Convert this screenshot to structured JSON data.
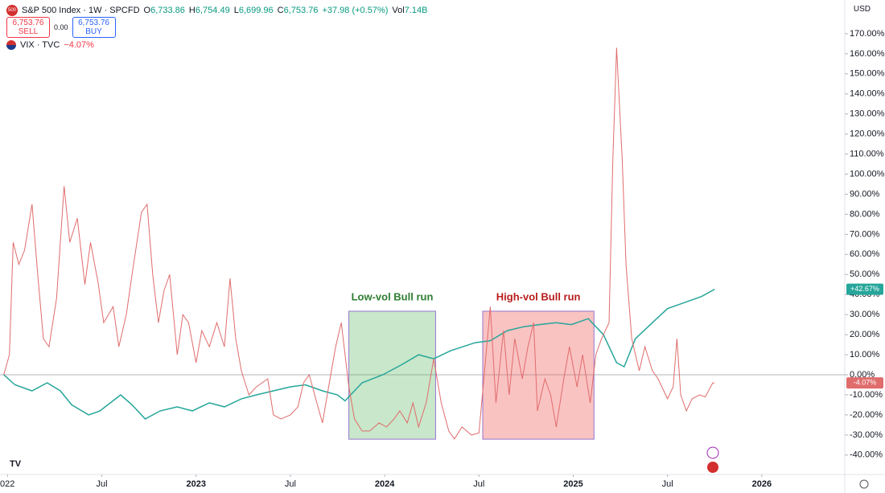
{
  "header": {
    "logo": "500",
    "title": "S&P 500 Index · 1W · SPCFD",
    "ohlc": [
      {
        "label": "O",
        "value": "6,733.86"
      },
      {
        "label": "H",
        "value": "6,754.49"
      },
      {
        "label": "L",
        "value": "6,699.96"
      },
      {
        "label": "C",
        "value": "6,753.76"
      }
    ],
    "change": "+37.98 (+0.57%)",
    "volume_label": "Vol",
    "volume": "7.14B",
    "sell_price": "6,753.76",
    "sell": "SELL",
    "spread": "0.00",
    "buy_price": "6,753.76",
    "buy": "BUY",
    "compare_symbol": "VIX · TVC",
    "compare_change": "−4.07%",
    "currency": "USD"
  },
  "chart_data": {
    "type": "line",
    "xlim": [
      2021.96,
      2026.44
    ],
    "ylim": [
      -49.7,
      186.8
    ],
    "xticks": [
      {
        "value": 2022,
        "label": "022"
      },
      {
        "value": 2022.5,
        "label": "Jul"
      },
      2023,
      {
        "value": 2023.5,
        "label": "Jul"
      },
      2024,
      {
        "value": 2024.5,
        "label": "Jul"
      },
      2025,
      {
        "value": 2025.5,
        "label": "Jul"
      },
      2026
    ],
    "yticks": [
      {
        "value": -40,
        "label": "-40.00%"
      },
      {
        "value": -30,
        "label": "-30.00%"
      },
      {
        "value": -20,
        "label": "-20.00%"
      },
      {
        "value": -10,
        "label": "-10.00%"
      },
      {
        "value": 0,
        "label": "0.00%"
      },
      {
        "value": 10,
        "label": "10.00%"
      },
      {
        "value": 20,
        "label": "20.00%"
      },
      {
        "value": 30,
        "label": "30.00%"
      },
      {
        "value": 40,
        "label": "40.00%"
      },
      {
        "value": 50,
        "label": "50.00%"
      },
      {
        "value": 60,
        "label": "60.00%"
      },
      {
        "value": 70,
        "label": "70.00%"
      },
      {
        "value": 80,
        "label": "80.00%"
      },
      {
        "value": 90,
        "label": "90.00%"
      },
      {
        "value": 100,
        "label": "100.00%"
      },
      {
        "value": 110,
        "label": "110.00%"
      },
      {
        "value": 120,
        "label": "120.00%"
      },
      {
        "value": 130,
        "label": "130.00%"
      },
      {
        "value": 140,
        "label": "140.00%"
      },
      {
        "value": 150,
        "label": "150.00%"
      },
      {
        "value": 160,
        "label": "160.00%"
      },
      {
        "value": 170,
        "label": "170.00%"
      }
    ],
    "grid": false,
    "series": [
      {
        "name": "S&P 500 Index",
        "color": "#26a69a",
        "last_label": "+42.67%",
        "x": [
          2021.98,
          2022.04,
          2022.13,
          2022.21,
          2022.28,
          2022.34,
          2022.43,
          2022.49,
          2022.6,
          2022.66,
          2022.73,
          2022.81,
          2022.9,
          2022.98,
          2023.07,
          2023.15,
          2023.24,
          2023.32,
          2023.41,
          2023.5,
          2023.58,
          2023.67,
          2023.75,
          2023.79,
          2023.88,
          2023.99,
          2024.09,
          2024.18,
          2024.26,
          2024.35,
          2024.48,
          2024.56,
          2024.65,
          2024.74,
          2024.82,
          2024.91,
          2024.99,
          2025.08,
          2025.16,
          2025.23,
          2025.27,
          2025.33,
          2025.42,
          2025.5,
          2025.59,
          2025.68,
          2025.75
        ],
        "values": [
          0,
          -5,
          -8,
          -4,
          -8,
          -15,
          -20,
          -18,
          -10,
          -15,
          -22,
          -18,
          -16,
          -18,
          -14,
          -16,
          -12,
          -10,
          -8,
          -6,
          -5,
          -8,
          -10,
          -13,
          -4,
          0,
          5,
          10,
          8,
          12,
          16,
          17,
          22,
          24,
          25,
          26,
          25,
          28,
          20,
          6,
          4,
          18,
          26,
          33,
          36,
          39,
          42.67
        ]
      },
      {
        "name": "VIX",
        "color": "#e06c6c",
        "last_label": "-4.07%",
        "x": [
          2021.98,
          2022.01,
          2022.03,
          2022.06,
          2022.09,
          2022.13,
          2022.16,
          2022.19,
          2022.22,
          2022.26,
          2022.3,
          2022.33,
          2022.37,
          2022.41,
          2022.44,
          2022.48,
          2022.51,
          2022.56,
          2022.59,
          2022.63,
          2022.66,
          2022.71,
          2022.74,
          2022.77,
          2022.8,
          2022.83,
          2022.86,
          2022.9,
          2022.93,
          2022.96,
          2023.0,
          2023.03,
          2023.07,
          2023.11,
          2023.15,
          2023.18,
          2023.21,
          2023.24,
          2023.28,
          2023.32,
          2023.38,
          2023.41,
          2023.45,
          2023.5,
          2023.54,
          2023.57,
          2023.6,
          2023.64,
          2023.67,
          2023.71,
          2023.74,
          2023.77,
          2023.81,
          2023.84,
          2023.88,
          2023.92,
          2023.97,
          2024.01,
          2024.05,
          2024.08,
          2024.12,
          2024.15,
          2024.18,
          2024.22,
          2024.26,
          2024.3,
          2024.34,
          2024.37,
          2024.41,
          2024.46,
          2024.5,
          2024.53,
          2024.56,
          2024.59,
          2024.63,
          2024.66,
          2024.69,
          2024.73,
          2024.76,
          2024.79,
          2024.81,
          2024.85,
          2024.88,
          2024.91,
          2024.95,
          2024.98,
          2025.02,
          2025.05,
          2025.09,
          2025.12,
          2025.15,
          2025.19,
          2025.21,
          2025.23,
          2025.26,
          2025.28,
          2025.31,
          2025.35,
          2025.38,
          2025.42,
          2025.45,
          2025.5,
          2025.53,
          2025.55,
          2025.57,
          2025.6,
          2025.63,
          2025.67,
          2025.7,
          2025.74,
          2025.75
        ],
        "values": [
          0,
          10,
          66,
          55,
          62,
          85,
          50,
          18,
          14,
          38,
          94,
          66,
          78,
          45,
          66,
          46,
          26,
          34,
          14,
          30,
          50,
          81,
          85,
          50,
          26,
          42,
          50,
          10,
          30,
          26,
          6,
          22,
          14,
          26,
          14,
          48,
          18,
          2,
          -10,
          -6,
          -2,
          -20,
          -22,
          -20,
          -16,
          -4,
          0,
          -14,
          -24,
          -2,
          14,
          26,
          -6,
          -22,
          -28,
          -28,
          -24,
          -26,
          -22,
          -18,
          -24,
          -14,
          -26,
          -14,
          8,
          -14,
          -28,
          -32,
          -26,
          -30,
          -29,
          2,
          34,
          -14,
          22,
          -10,
          18,
          -2,
          14,
          26,
          -18,
          -2,
          -10,
          -26,
          -2,
          14,
          -6,
          10,
          -14,
          10,
          18,
          26,
          107,
          163,
          107,
          55,
          18,
          2,
          14,
          2,
          -2,
          -12,
          -6,
          18,
          -10,
          -18,
          -12,
          -10,
          -11,
          -4,
          -4.07
        ]
      }
    ],
    "annotations": [
      {
        "text": "Low-vol Bull run",
        "x": [
          2023.81,
          2024.27
        ],
        "y": [
          -32.1,
          31.7
        ],
        "color": "#2e7d32",
        "fill": "rgba(76,175,80,0.3)"
      },
      {
        "text": "High-vol Bull run",
        "x": [
          2024.52,
          2025.11
        ],
        "y": [
          -32.1,
          31.7
        ],
        "color": "#b71c1c",
        "fill": "rgba(239,83,80,0.35)"
      }
    ]
  }
}
